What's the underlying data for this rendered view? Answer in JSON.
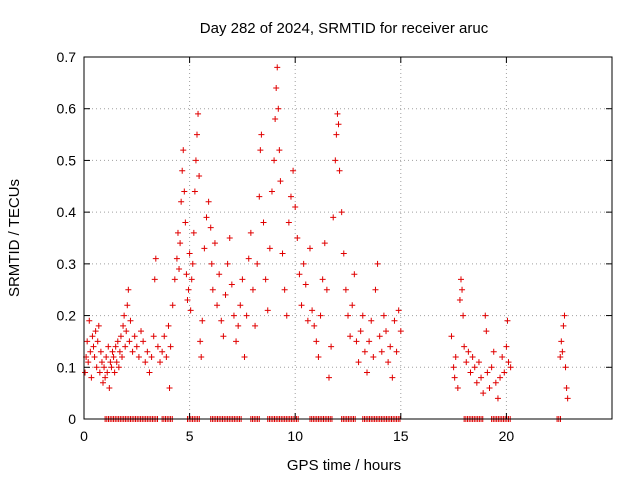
{
  "chart_data": {
    "type": "scatter",
    "title": "Day 282 of 2024, SRMTID for receiver aruc",
    "xlabel": "GPS time / hours",
    "ylabel": "SRMTID / TECUs",
    "xlim": [
      0,
      25
    ],
    "ylim": [
      0,
      0.7
    ],
    "x_ticks": [
      0,
      5,
      10,
      15,
      20
    ],
    "y_ticks": [
      0,
      0.1,
      0.2,
      0.3,
      0.4,
      0.5,
      0.6,
      0.7
    ],
    "x_tick_labels": [
      "0",
      "5",
      "10",
      "15",
      "20"
    ],
    "y_tick_labels": [
      "0",
      "0.1",
      "0.2",
      "0.3",
      "0.4",
      "0.5",
      "0.6",
      "0.7"
    ],
    "grid": true,
    "marker": "plus",
    "color": "#e00000",
    "series": [
      {
        "name": "SRMTID",
        "points": [
          [
            0.05,
            0.09
          ],
          [
            0.1,
            0.12
          ],
          [
            0.15,
            0.15
          ],
          [
            0.2,
            0.11
          ],
          [
            0.25,
            0.19
          ],
          [
            0.3,
            0.13
          ],
          [
            0.35,
            0.08
          ],
          [
            0.4,
            0.16
          ],
          [
            0.45,
            0.14
          ],
          [
            0.5,
            0.12
          ],
          [
            0.55,
            0.17
          ],
          [
            0.6,
            0.1
          ],
          [
            0.65,
            0.15
          ],
          [
            0.7,
            0.18
          ],
          [
            0.75,
            0.09
          ],
          [
            0.8,
            0.13
          ],
          [
            0.85,
            0.11
          ],
          [
            0.9,
            0.07
          ],
          [
            0.95,
            0.1
          ],
          [
            1.0,
            0.08
          ],
          [
            1.05,
            0.12
          ],
          [
            1.1,
            0.09
          ],
          [
            1.15,
            0.14
          ],
          [
            1.2,
            0.06
          ],
          [
            1.25,
            0.11
          ],
          [
            1.3,
            0.1
          ],
          [
            1.35,
            0.13
          ],
          [
            1.4,
            0.12
          ],
          [
            1.45,
            0.09
          ],
          [
            1.5,
            0.14
          ],
          [
            1.55,
            0.11
          ],
          [
            1.6,
            0.15
          ],
          [
            1.65,
            0.1
          ],
          [
            1.7,
            0.13
          ],
          [
            1.75,
            0.16
          ],
          [
            1.8,
            0.12
          ],
          [
            1.85,
            0.18
          ],
          [
            1.9,
            0.2
          ],
          [
            1.95,
            0.14
          ],
          [
            2.0,
            0.17
          ],
          [
            2.05,
            0.22
          ],
          [
            2.1,
            0.25
          ],
          [
            2.15,
            0.15
          ],
          [
            2.2,
            0.19
          ],
          [
            2.3,
            0.13
          ],
          [
            2.4,
            0.16
          ],
          [
            2.5,
            0.14
          ],
          [
            2.6,
            0.12
          ],
          [
            2.7,
            0.17
          ],
          [
            2.8,
            0.15
          ],
          [
            2.9,
            0.11
          ],
          [
            3.0,
            0.13
          ],
          [
            3.1,
            0.09
          ],
          [
            3.2,
            0.12
          ],
          [
            3.3,
            0.16
          ],
          [
            3.35,
            0.27
          ],
          [
            3.4,
            0.31
          ],
          [
            3.5,
            0.14
          ],
          [
            3.6,
            0.11
          ],
          [
            3.7,
            0.13
          ],
          [
            3.8,
            0.16
          ],
          [
            3.9,
            0.12
          ],
          [
            4.0,
            0.18
          ],
          [
            4.05,
            0.06
          ],
          [
            4.1,
            0.14
          ],
          [
            4.2,
            0.22
          ],
          [
            4.3,
            0.27
          ],
          [
            4.4,
            0.31
          ],
          [
            4.45,
            0.36
          ],
          [
            4.5,
            0.29
          ],
          [
            4.55,
            0.34
          ],
          [
            4.6,
            0.42
          ],
          [
            4.65,
            0.48
          ],
          [
            4.7,
            0.52
          ],
          [
            4.75,
            0.44
          ],
          [
            4.8,
            0.38
          ],
          [
            4.85,
            0.28
          ],
          [
            4.9,
            0.23
          ],
          [
            4.95,
            0.25
          ],
          [
            5.0,
            0.32
          ],
          [
            5.05,
            0.21
          ],
          [
            5.1,
            0.27
          ],
          [
            5.15,
            0.3
          ],
          [
            5.2,
            0.36
          ],
          [
            5.25,
            0.44
          ],
          [
            5.3,
            0.5
          ],
          [
            5.35,
            0.55
          ],
          [
            5.4,
            0.59
          ],
          [
            5.45,
            0.47
          ],
          [
            5.5,
            0.15
          ],
          [
            5.55,
            0.12
          ],
          [
            5.6,
            0.19
          ],
          [
            5.7,
            0.33
          ],
          [
            5.8,
            0.39
          ],
          [
            5.9,
            0.42
          ],
          [
            6.0,
            0.37
          ],
          [
            6.05,
            0.3
          ],
          [
            6.1,
            0.25
          ],
          [
            6.2,
            0.34
          ],
          [
            6.3,
            0.22
          ],
          [
            6.4,
            0.28
          ],
          [
            6.5,
            0.19
          ],
          [
            6.6,
            0.16
          ],
          [
            6.7,
            0.24
          ],
          [
            6.8,
            0.3
          ],
          [
            6.9,
            0.35
          ],
          [
            7.0,
            0.26
          ],
          [
            7.1,
            0.2
          ],
          [
            7.2,
            0.15
          ],
          [
            7.3,
            0.18
          ],
          [
            7.4,
            0.22
          ],
          [
            7.5,
            0.27
          ],
          [
            7.6,
            0.12
          ],
          [
            7.7,
            0.2
          ],
          [
            7.8,
            0.31
          ],
          [
            7.9,
            0.36
          ],
          [
            8.0,
            0.25
          ],
          [
            8.1,
            0.18
          ],
          [
            8.2,
            0.3
          ],
          [
            8.3,
            0.43
          ],
          [
            8.35,
            0.52
          ],
          [
            8.4,
            0.55
          ],
          [
            8.5,
            0.38
          ],
          [
            8.6,
            0.27
          ],
          [
            8.7,
            0.21
          ],
          [
            8.8,
            0.33
          ],
          [
            8.9,
            0.44
          ],
          [
            9.0,
            0.5
          ],
          [
            9.05,
            0.58
          ],
          [
            9.1,
            0.64
          ],
          [
            9.15,
            0.68
          ],
          [
            9.2,
            0.6
          ],
          [
            9.25,
            0.52
          ],
          [
            9.3,
            0.46
          ],
          [
            9.4,
            0.32
          ],
          [
            9.5,
            0.25
          ],
          [
            9.6,
            0.2
          ],
          [
            9.7,
            0.38
          ],
          [
            9.8,
            0.43
          ],
          [
            9.9,
            0.48
          ],
          [
            10.0,
            0.41
          ],
          [
            10.1,
            0.35
          ],
          [
            10.2,
            0.28
          ],
          [
            10.3,
            0.22
          ],
          [
            10.4,
            0.3
          ],
          [
            10.5,
            0.26
          ],
          [
            10.6,
            0.19
          ],
          [
            10.7,
            0.33
          ],
          [
            10.8,
            0.21
          ],
          [
            10.9,
            0.18
          ],
          [
            11.0,
            0.15
          ],
          [
            11.1,
            0.12
          ],
          [
            11.2,
            0.2
          ],
          [
            11.3,
            0.27
          ],
          [
            11.4,
            0.34
          ],
          [
            11.5,
            0.25
          ],
          [
            11.6,
            0.08
          ],
          [
            11.7,
            0.14
          ],
          [
            11.8,
            0.39
          ],
          [
            11.9,
            0.5
          ],
          [
            11.95,
            0.55
          ],
          [
            12.0,
            0.59
          ],
          [
            12.05,
            0.57
          ],
          [
            12.1,
            0.48
          ],
          [
            12.2,
            0.4
          ],
          [
            12.3,
            0.32
          ],
          [
            12.4,
            0.25
          ],
          [
            12.5,
            0.2
          ],
          [
            12.6,
            0.16
          ],
          [
            12.7,
            0.22
          ],
          [
            12.8,
            0.28
          ],
          [
            12.9,
            0.15
          ],
          [
            13.0,
            0.11
          ],
          [
            13.1,
            0.17
          ],
          [
            13.2,
            0.2
          ],
          [
            13.3,
            0.13
          ],
          [
            13.4,
            0.09
          ],
          [
            13.5,
            0.15
          ],
          [
            13.6,
            0.19
          ],
          [
            13.7,
            0.12
          ],
          [
            13.8,
            0.25
          ],
          [
            13.9,
            0.3
          ],
          [
            14.0,
            0.16
          ],
          [
            14.1,
            0.13
          ],
          [
            14.2,
            0.2
          ],
          [
            14.3,
            0.17
          ],
          [
            14.4,
            0.11
          ],
          [
            14.5,
            0.14
          ],
          [
            14.6,
            0.08
          ],
          [
            14.7,
            0.19
          ],
          [
            14.8,
            0.13
          ],
          [
            14.9,
            0.21
          ],
          [
            15.0,
            0.17
          ],
          [
            17.4,
            0.16
          ],
          [
            17.5,
            0.1
          ],
          [
            17.55,
            0.08
          ],
          [
            17.6,
            0.12
          ],
          [
            17.7,
            0.06
          ],
          [
            17.8,
            0.23
          ],
          [
            17.85,
            0.27
          ],
          [
            17.9,
            0.25
          ],
          [
            17.95,
            0.2
          ],
          [
            18.0,
            0.14
          ],
          [
            18.1,
            0.11
          ],
          [
            18.2,
            0.13
          ],
          [
            18.3,
            0.09
          ],
          [
            18.4,
            0.12
          ],
          [
            18.5,
            0.1
          ],
          [
            18.6,
            0.07
          ],
          [
            18.7,
            0.11
          ],
          [
            18.8,
            0.08
          ],
          [
            18.9,
            0.05
          ],
          [
            19.0,
            0.2
          ],
          [
            19.05,
            0.17
          ],
          [
            19.1,
            0.09
          ],
          [
            19.2,
            0.06
          ],
          [
            19.3,
            0.1
          ],
          [
            19.4,
            0.13
          ],
          [
            19.5,
            0.07
          ],
          [
            19.6,
            0.04
          ],
          [
            19.7,
            0.08
          ],
          [
            19.8,
            0.12
          ],
          [
            19.9,
            0.09
          ],
          [
            20.0,
            0.14
          ],
          [
            20.05,
            0.19
          ],
          [
            20.1,
            0.11
          ],
          [
            20.2,
            0.1
          ],
          [
            22.55,
            0.12
          ],
          [
            22.6,
            0.15
          ],
          [
            22.65,
            0.13
          ],
          [
            22.7,
            0.18
          ],
          [
            22.75,
            0.2
          ],
          [
            22.8,
            0.1
          ],
          [
            22.85,
            0.06
          ],
          [
            22.9,
            0.04
          ]
        ]
      }
    ],
    "zero_bands": [
      [
        1.0,
        3.5
      ],
      [
        3.7,
        4.2
      ],
      [
        4.9,
        5.5
      ],
      [
        6.0,
        7.5
      ],
      [
        7.9,
        8.3
      ],
      [
        8.7,
        10.2
      ],
      [
        10.7,
        11.8
      ],
      [
        12.2,
        12.9
      ],
      [
        13.2,
        15.0
      ],
      [
        18.0,
        18.9
      ],
      [
        19.3,
        20.2
      ],
      [
        22.4,
        22.6
      ]
    ]
  }
}
